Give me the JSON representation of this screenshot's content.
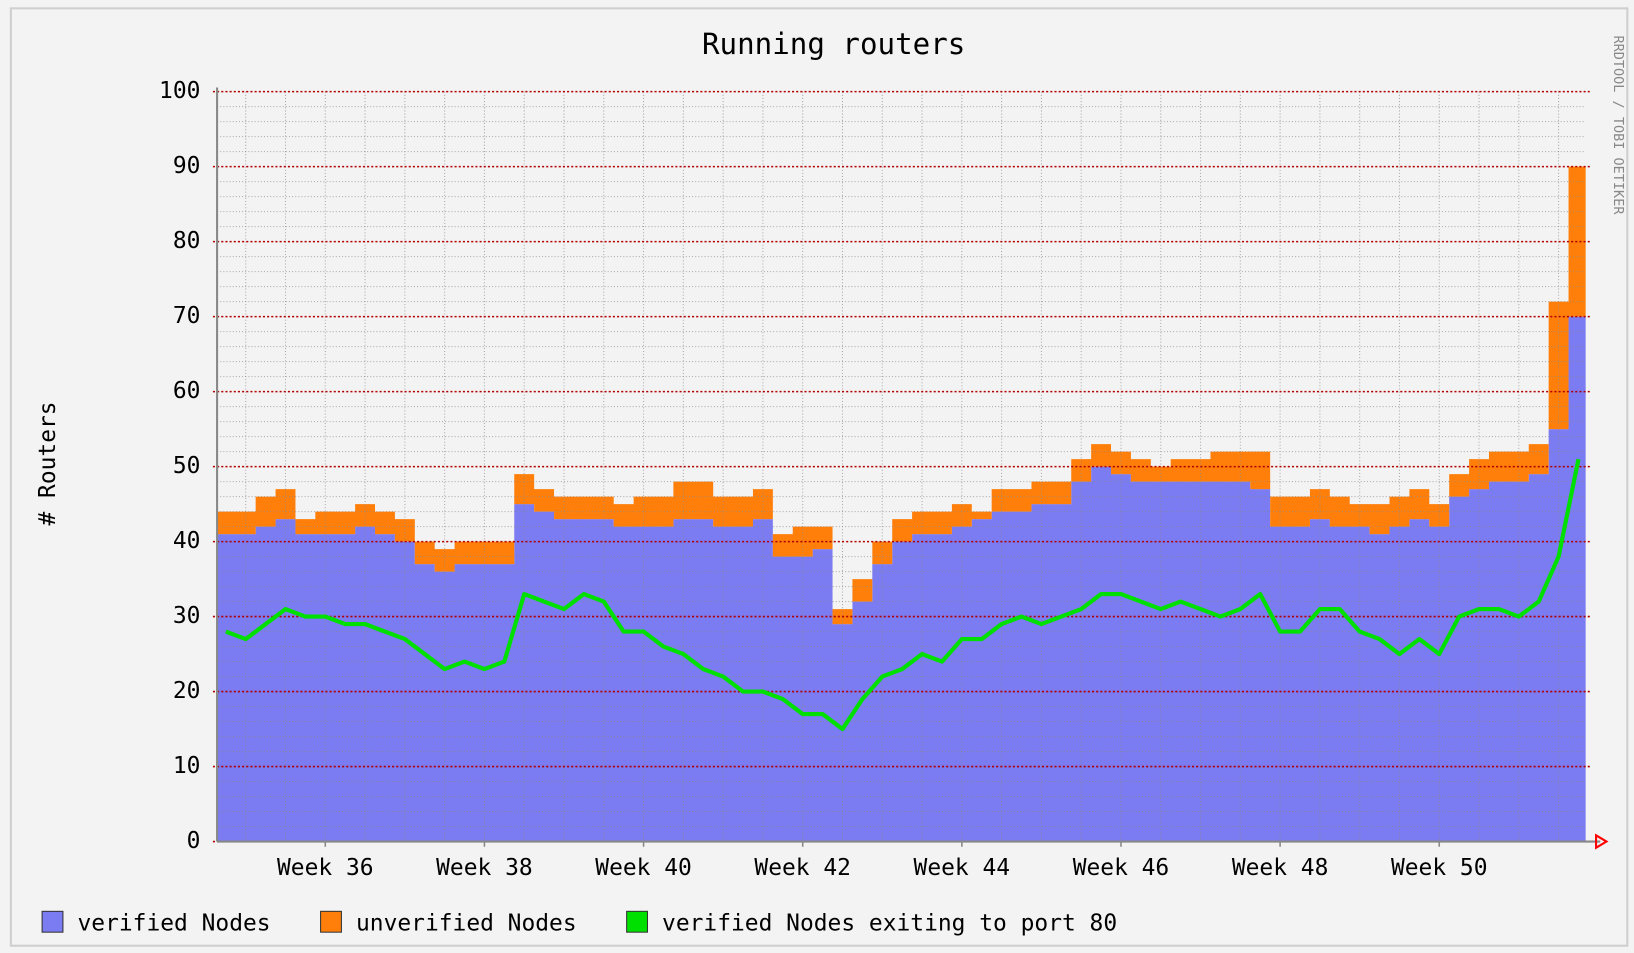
{
  "chart_data": {
    "type": "stacked_area",
    "title": "Running routers",
    "ylabel": "# Routers",
    "watermark": "RRDTOOL / TOBI OETIKER",
    "x": [
      34.75,
      35,
      35.25,
      35.5,
      35.75,
      36,
      36.25,
      36.5,
      36.75,
      37,
      37.25,
      37.5,
      37.75,
      38,
      38.25,
      38.5,
      38.75,
      39,
      39.25,
      39.5,
      39.75,
      40,
      40.25,
      40.5,
      40.75,
      41,
      41.25,
      41.5,
      41.75,
      42,
      42.25,
      42.5,
      42.75,
      43,
      43.25,
      43.5,
      43.75,
      44,
      44.25,
      44.5,
      44.75,
      45,
      45.25,
      45.5,
      45.75,
      46,
      46.25,
      46.5,
      46.75,
      47,
      47.25,
      47.5,
      47.75,
      48,
      48.25,
      48.5,
      48.75,
      49,
      49.25,
      49.5,
      49.75,
      50,
      50.25,
      50.5,
      50.75,
      51,
      51.25,
      51.5,
      51.75
    ],
    "series": [
      {
        "name": "verified Nodes",
        "color": "#7b7bf2",
        "values": [
          41,
          41,
          42,
          43,
          41,
          41,
          41,
          42,
          41,
          40,
          37,
          36,
          37,
          37,
          37,
          45,
          44,
          43,
          43,
          43,
          42,
          42,
          42,
          43,
          43,
          42,
          42,
          43,
          38,
          38,
          39,
          29,
          32,
          37,
          40,
          41,
          41,
          42,
          43,
          44,
          44,
          45,
          45,
          48,
          50,
          49,
          48,
          48,
          48,
          48,
          48,
          48,
          47,
          42,
          42,
          43,
          42,
          42,
          41,
          42,
          43,
          42,
          46,
          47,
          48,
          48,
          49,
          55,
          70
        ]
      },
      {
        "name": "unverified Nodes",
        "color": "#ff7f0a",
        "stack": true,
        "values": [
          3,
          3,
          4,
          4,
          2,
          3,
          3,
          3,
          3,
          3,
          3,
          3,
          3,
          3,
          3,
          4,
          3,
          3,
          3,
          3,
          3,
          4,
          4,
          5,
          5,
          4,
          4,
          4,
          3,
          4,
          3,
          2,
          3,
          3,
          3,
          3,
          3,
          3,
          1,
          3,
          3,
          3,
          3,
          3,
          3,
          3,
          3,
          2,
          3,
          3,
          4,
          4,
          5,
          4,
          4,
          4,
          4,
          3,
          4,
          4,
          4,
          3,
          3,
          4,
          4,
          4,
          4,
          17,
          20
        ]
      },
      {
        "name": "verified Nodes exiting to port 80",
        "color": "#00e000",
        "line": true,
        "values": [
          28,
          27,
          29,
          31,
          30,
          30,
          29,
          29,
          28,
          27,
          25,
          23,
          24,
          23,
          24,
          33,
          32,
          31,
          33,
          32,
          28,
          28,
          26,
          25,
          23,
          22,
          20,
          20,
          19,
          17,
          17,
          15,
          19,
          22,
          23,
          25,
          24,
          27,
          27,
          29,
          30,
          29,
          30,
          31,
          33,
          33,
          32,
          31,
          32,
          31,
          30,
          31,
          33,
          28,
          28,
          31,
          31,
          28,
          27,
          25,
          27,
          25,
          30,
          31,
          31,
          30,
          32,
          38,
          51
        ]
      }
    ],
    "xlim": [
      34.64,
      51.84
    ],
    "xticks": [
      {
        "value": 36,
        "label": "Week 36"
      },
      {
        "value": 38,
        "label": "Week 38"
      },
      {
        "value": 40,
        "label": "Week 40"
      },
      {
        "value": 42,
        "label": "Week 42"
      },
      {
        "value": 44,
        "label": "Week 44"
      },
      {
        "value": 46,
        "label": "Week 46"
      },
      {
        "value": 48,
        "label": "Week 48"
      },
      {
        "value": 50,
        "label": "Week 50"
      }
    ],
    "ylim": [
      0,
      100
    ],
    "yticks": [
      0,
      10,
      20,
      30,
      40,
      50,
      60,
      70,
      80,
      90,
      100
    ],
    "grid": true,
    "legend": "bottom"
  }
}
